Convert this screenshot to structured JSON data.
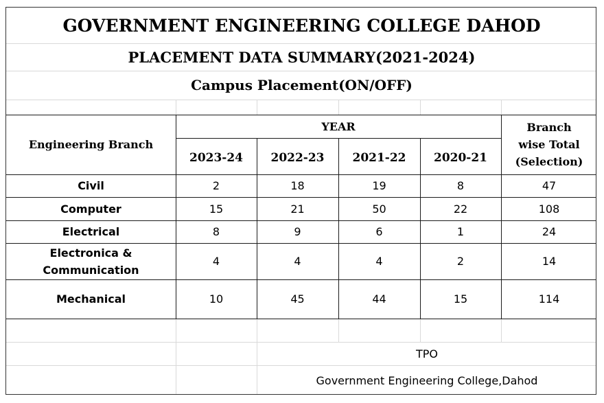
{
  "titles": {
    "college": "GOVERNMENT ENGINEERING COLLEGE DAHOD",
    "summary": "PLACEMENT DATA SUMMARY(2021-2024)",
    "campus": "Campus Placement(ON/OFF)"
  },
  "table": {
    "branch_header": "Engineering Branch",
    "year_header": "YEAR",
    "total_header_lines": [
      "Branch",
      "wise Total",
      "(Selection)"
    ],
    "years": [
      "2023-24",
      "2022-23",
      "2021-22",
      "2020-21"
    ],
    "rows": [
      {
        "branch_lines": [
          "Civil"
        ],
        "values": [
          "2",
          "18",
          "19",
          "8"
        ],
        "total": "47"
      },
      {
        "branch_lines": [
          "Computer"
        ],
        "values": [
          "15",
          "21",
          "50",
          "22"
        ],
        "total": "108"
      },
      {
        "branch_lines": [
          "Electrical"
        ],
        "values": [
          "8",
          "9",
          "6",
          "1"
        ],
        "total": "24"
      },
      {
        "branch_lines": [
          "Electronica &",
          "Communication"
        ],
        "values": [
          "4",
          "4",
          "4",
          "2"
        ],
        "total": "14"
      },
      {
        "branch_lines": [
          "Mechanical"
        ],
        "values": [
          "10",
          "45",
          "44",
          "15"
        ],
        "total": "114"
      }
    ]
  },
  "footer": {
    "role": "TPO",
    "institution": "Government Engineering College,Dahod"
  }
}
